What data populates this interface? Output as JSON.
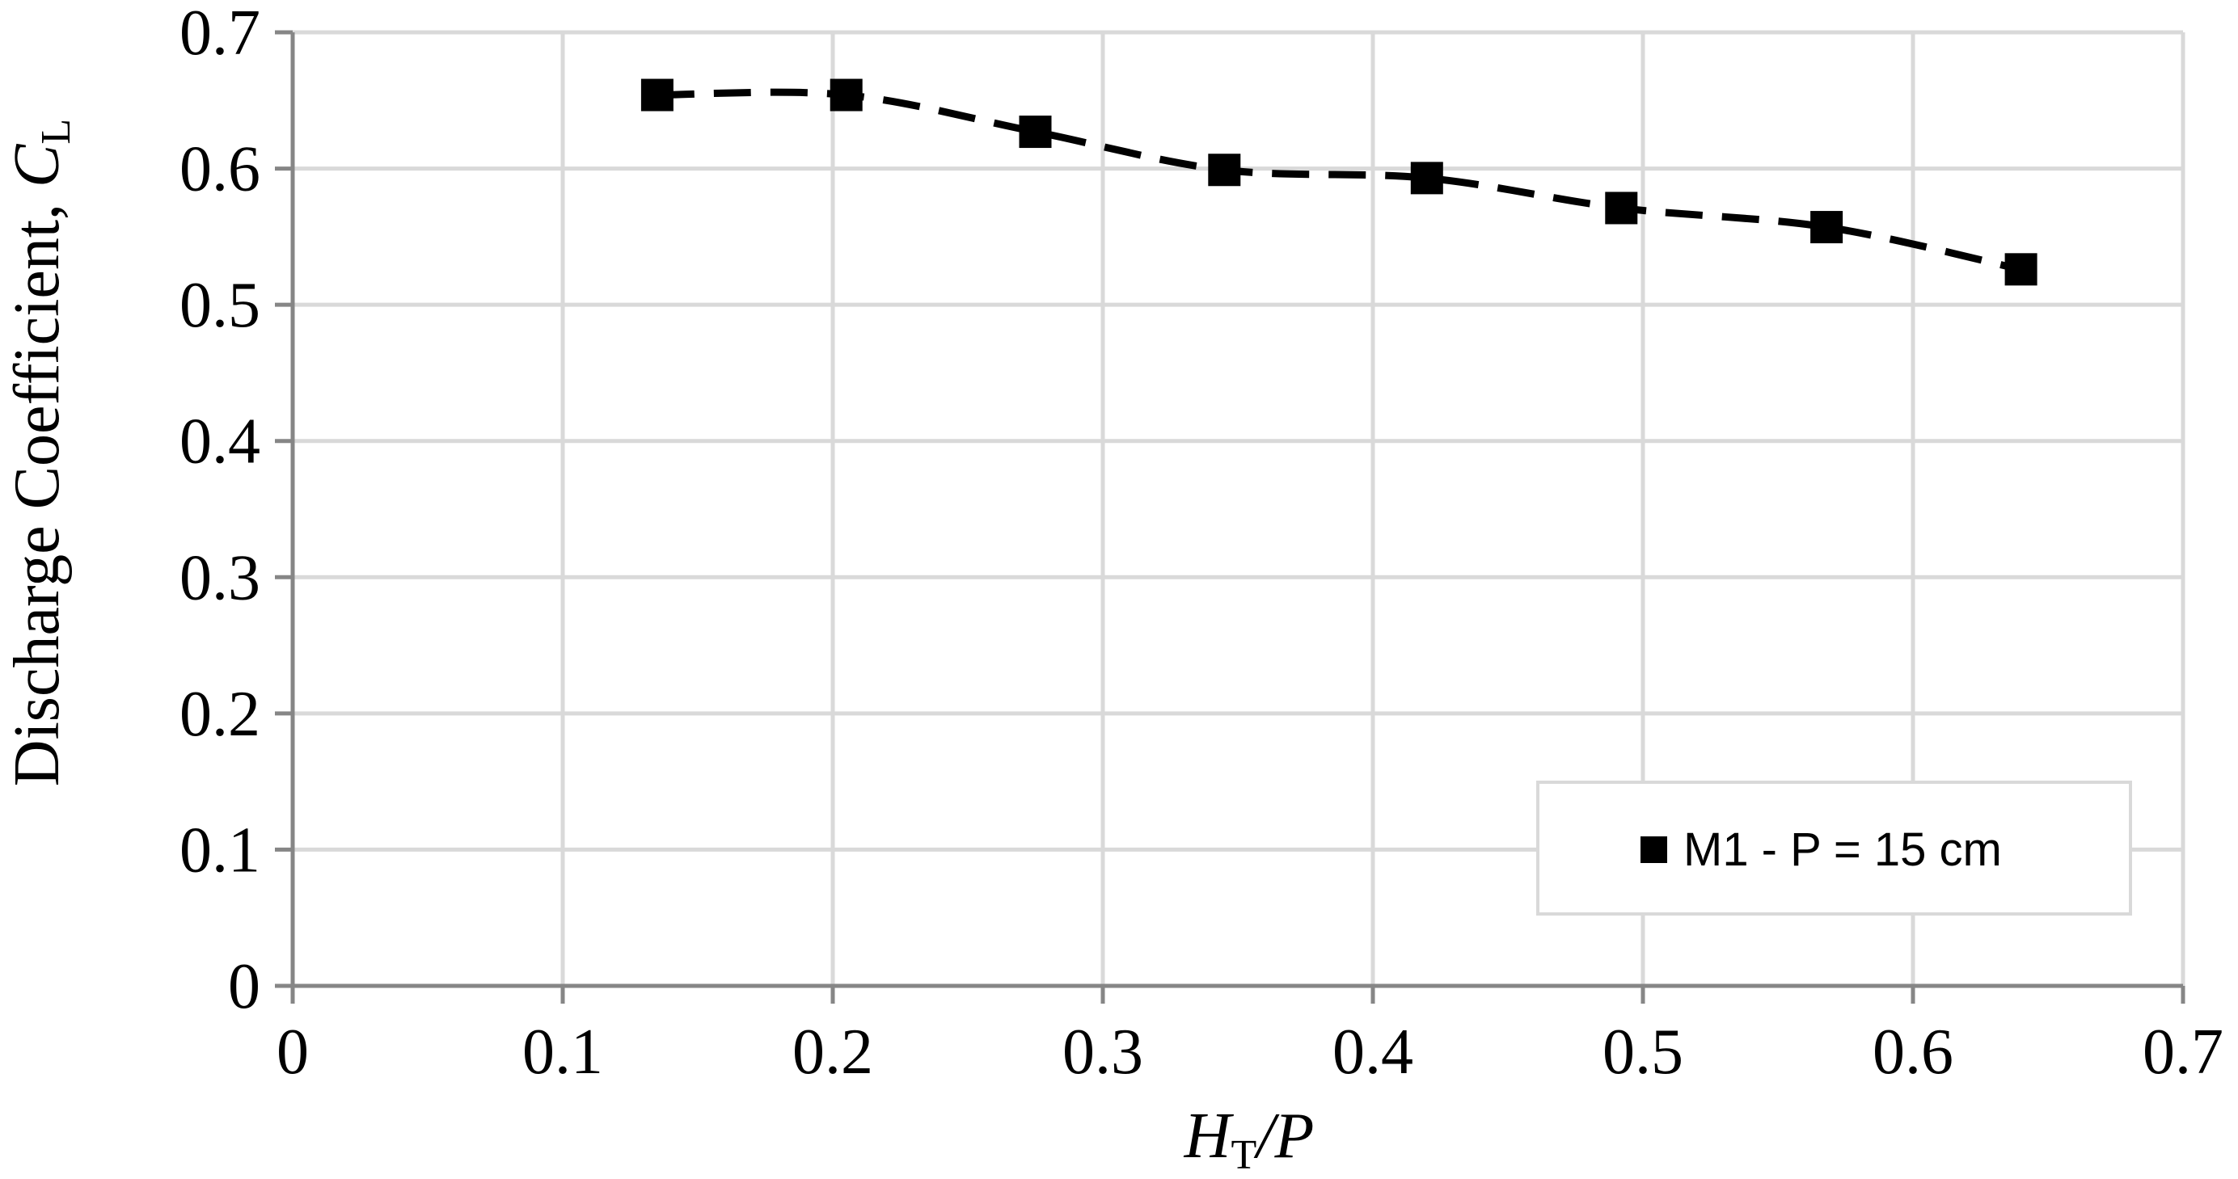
{
  "chart_data": {
    "type": "line",
    "title": "",
    "xlabel": {
      "main": "H",
      "sub": "T",
      "rest": "/P"
    },
    "ylabel": {
      "prefix": "Discharge Coefficient, ",
      "main": "C",
      "sub": "L"
    },
    "xlim": [
      0,
      0.7
    ],
    "ylim": [
      0,
      0.7
    ],
    "xticks": [
      "0",
      "0.1",
      "0.2",
      "0.3",
      "0.4",
      "0.5",
      "0.6",
      "0.7"
    ],
    "yticks": [
      "0",
      "0.1",
      "0.2",
      "0.3",
      "0.4",
      "0.5",
      "0.6",
      "0.7"
    ],
    "grid": true,
    "legend_position": "bottom-right",
    "series": [
      {
        "name": "M1 - P = 15 cm",
        "marker": "square",
        "line_style": "dashed",
        "color": "#000000",
        "x": [
          0.135,
          0.205,
          0.275,
          0.345,
          0.42,
          0.492,
          0.568,
          0.64
        ],
        "y": [
          0.654,
          0.654,
          0.627,
          0.599,
          0.593,
          0.571,
          0.557,
          0.526
        ]
      }
    ]
  },
  "colors": {
    "grid": "#d9d9d9",
    "axis": "#868686",
    "series": "#000000",
    "legend_border": "#d9d9d9"
  }
}
